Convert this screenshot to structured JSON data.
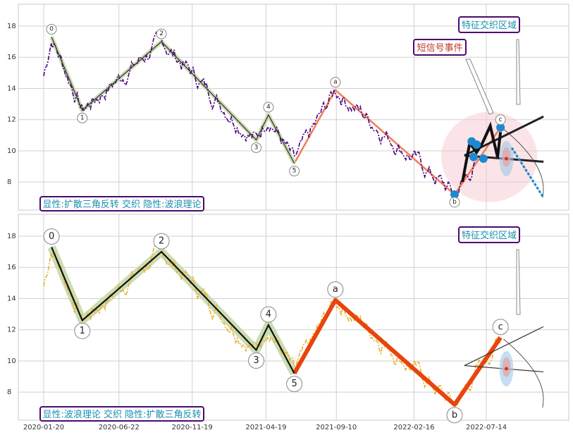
{
  "chart_data": [
    {
      "type": "line",
      "panel": "top",
      "annotation": "显性:扩散三角反转 交织 隐性:波浪理论",
      "callouts": [
        "特征交织区域",
        "短信号事件"
      ],
      "ylim": [
        6.2,
        19.4
      ],
      "yticks": [
        8,
        10,
        12,
        14,
        16,
        18
      ],
      "colors": {
        "price": "#4b0082",
        "wave": "#2f2f2f",
        "wave_fill": "#c7d9a8",
        "abc": "#ef7f55",
        "triangle": "#222222",
        "marker": "#1e88d0"
      },
      "wave_labels": [
        "0",
        "1",
        "2",
        "3",
        "4",
        "5",
        "a",
        "b",
        "c"
      ]
    },
    {
      "type": "line",
      "panel": "bottom",
      "annotation": "显性:波浪理论 交织 隐性:扩散三角反转",
      "callouts": [
        "特征交织区域"
      ],
      "ylim": [
        6.2,
        19.4
      ],
      "yticks": [
        8,
        10,
        12,
        14,
        16,
        18
      ],
      "colors": {
        "price": "#e8b030",
        "wave": "#111111",
        "wave_fill": "#c7d9a8",
        "abc": "#e8440c",
        "triangle": "#333333"
      },
      "wave_labels": [
        "0",
        "1",
        "2",
        "3",
        "4",
        "5",
        "a",
        "b",
        "c"
      ]
    }
  ],
  "x_axis": {
    "ticks": [
      "2020-01-20",
      "2020-06-22",
      "2020-11-19",
      "2021-04-19",
      "2021-09-10",
      "2022-02-16",
      "2022-07-14"
    ]
  },
  "waves": [
    {
      "label": "0",
      "x": "2020-02-05",
      "y": 17.3
    },
    {
      "label": "1",
      "x": "2020-04-08",
      "y": 12.6
    },
    {
      "label": "2",
      "x": "2020-09-17",
      "y": 17.0
    },
    {
      "label": "3",
      "x": "2021-03-30",
      "y": 10.7
    },
    {
      "label": "4",
      "x": "2021-04-24",
      "y": 12.3
    },
    {
      "label": "5",
      "x": "2021-06-16",
      "y": 9.2
    },
    {
      "label": "a",
      "x": "2021-09-08",
      "y": 13.9
    },
    {
      "label": "b",
      "x": "2022-05-10",
      "y": 7.2
    },
    {
      "label": "c",
      "x": "2022-08-12",
      "y": 11.5
    }
  ]
}
